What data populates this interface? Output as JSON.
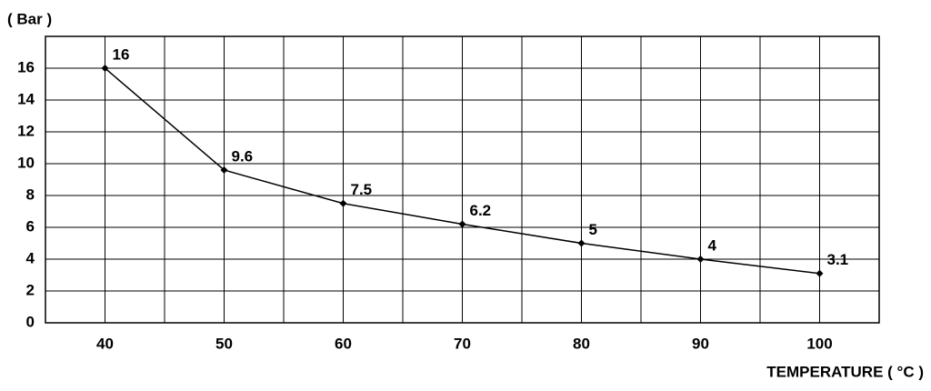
{
  "chart_data": {
    "type": "line",
    "y_label": "( Bar )",
    "x_label": "TEMPERATURE ( °C )",
    "x": [
      40,
      50,
      60,
      70,
      80,
      90,
      100
    ],
    "series": [
      {
        "color": "#000000",
        "values": [
          16,
          9.6,
          7.5,
          6.2,
          5,
          4,
          3.1
        ]
      }
    ],
    "xlim": [
      35,
      105
    ],
    "xticks": [
      40,
      50,
      60,
      70,
      80,
      90,
      100
    ],
    "x_minor_ticks": [
      45,
      55,
      65,
      75,
      85,
      95
    ],
    "ylim": [
      0,
      18
    ],
    "yticks": [
      0,
      2,
      4,
      6,
      8,
      10,
      12,
      14,
      16
    ],
    "grid": true
  }
}
